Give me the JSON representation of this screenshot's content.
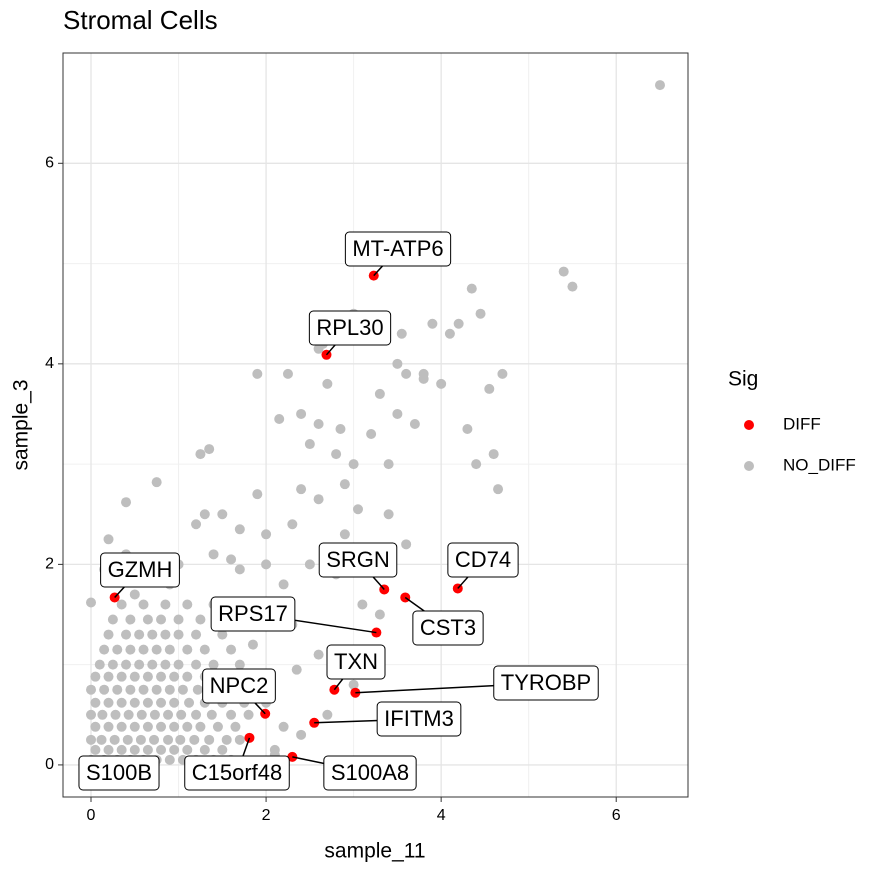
{
  "chart_data": {
    "type": "scatter",
    "title": "Stromal Cells",
    "x_label": "sample_11",
    "y_label": "sample_3",
    "xlim": [
      -0.32,
      6.82
    ],
    "ylim": [
      -0.32,
      7.1
    ],
    "xticks": [
      0,
      2,
      4,
      6
    ],
    "yticks": [
      0,
      2,
      4,
      6
    ],
    "x_minor_grid": [
      1,
      3,
      5
    ],
    "y_minor_grid": [
      1,
      3,
      5
    ],
    "grid": true,
    "legend_title": "Sig",
    "legend_position": "right",
    "series": [
      {
        "name": "DIFF",
        "color": "#ff0000",
        "labels": [
          "MT-ATP6",
          "RPL30",
          "GZMH",
          "SRGN",
          "CD74",
          "CST3",
          "RPS17",
          "TXN",
          "TYROBP",
          "IFITM3",
          "NPC2",
          "C15orf48",
          "S100B",
          "S100A8"
        ],
        "x": [
          3.23,
          2.69,
          0.27,
          3.35,
          4.19,
          3.59,
          3.26,
          2.78,
          3.02,
          2.55,
          1.99,
          1.81,
          0.3,
          2.3
        ],
        "y": [
          4.88,
          4.09,
          1.67,
          1.75,
          1.76,
          1.67,
          1.32,
          0.75,
          0.72,
          0.42,
          0.51,
          0.27,
          0.02,
          0.08
        ]
      },
      {
        "name": "NO_DIFF",
        "color": "#bebebe",
        "x": [
          0,
          0.15,
          0.3,
          0.45,
          0.6,
          0.75,
          0.9,
          1.05,
          1.2,
          1.4,
          1.6,
          0.05,
          0.2,
          0.35,
          0.5,
          0.65,
          0.8,
          0.95,
          1.1,
          1.3,
          1.5,
          2.1,
          0,
          0.12,
          0.27,
          0.42,
          0.57,
          0.72,
          0.88,
          1.02,
          1.18,
          1.35,
          1.55,
          1.7,
          0.05,
          0.2,
          0.35,
          0.5,
          0.65,
          0.8,
          0.95,
          1.1,
          1.25,
          1.45,
          1.65,
          2.2,
          0,
          0.13,
          0.28,
          0.43,
          0.58,
          0.73,
          0.88,
          1.03,
          1.2,
          1.38,
          1.6,
          1.8,
          0.05,
          0.2,
          0.35,
          0.5,
          0.65,
          0.8,
          0.95,
          1.12,
          1.3,
          1.5,
          1.75,
          2,
          0,
          0.15,
          0.3,
          0.45,
          0.6,
          0.75,
          0.9,
          1.05,
          1.22,
          1.4,
          1.62,
          1.9,
          0.05,
          0.2,
          0.35,
          0.5,
          0.65,
          0.8,
          0.95,
          1.1,
          1.3,
          1.55,
          1.85,
          0.1,
          0.25,
          0.4,
          0.55,
          0.7,
          0.85,
          1,
          1.2,
          1.4,
          1.7,
          0.15,
          0.3,
          0.45,
          0.6,
          0.75,
          0.9,
          1.1,
          1.3,
          1.6,
          0.2,
          0.4,
          0.55,
          0.7,
          0.85,
          1,
          1.2,
          1.5,
          0.25,
          0.45,
          0.65,
          0.8,
          1,
          1.25,
          0.35,
          0.6,
          0.85,
          1.1,
          1.4,
          0,
          0.15,
          0.2,
          0.4,
          0.4,
          0.75,
          1.25,
          1.35,
          1.3,
          1.7,
          1.9,
          2,
          2.3,
          2.4,
          2.6,
          2.8,
          2.9,
          2.5,
          2.6,
          2.7,
          2.85,
          3,
          3.05,
          3.2,
          3.3,
          3.4,
          3.5,
          3.6,
          3.7,
          3.8,
          3.9,
          4,
          4.1,
          4.2,
          4.3,
          4.4,
          4.45,
          4.35,
          4.55,
          4.6,
          4.7,
          4.65,
          5.4,
          5.5,
          6.5,
          1.9,
          2.25,
          2.15,
          2.4,
          2.65,
          2.6,
          3,
          3.1,
          3.5,
          3.55,
          3.8,
          3.4,
          3.3,
          3.1,
          3.3,
          2.8,
          2.5,
          2.2,
          2,
          2.3,
          2.6,
          3,
          3.2,
          2.7,
          2.4,
          2.1,
          2.35,
          1.85,
          1.6,
          1.5,
          1.7,
          2,
          2.9,
          3.6,
          1,
          0.9,
          0.6,
          0.5,
          1.2,
          1.4
        ],
        "y": [
          0.05,
          0.05,
          0.05,
          0.05,
          0.05,
          0.05,
          0.05,
          0.05,
          0.05,
          0.05,
          0.05,
          0.15,
          0.15,
          0.15,
          0.15,
          0.15,
          0.15,
          0.15,
          0.15,
          0.15,
          0.15,
          0.15,
          0.25,
          0.25,
          0.25,
          0.25,
          0.25,
          0.25,
          0.25,
          0.25,
          0.25,
          0.25,
          0.25,
          0.25,
          0.38,
          0.38,
          0.38,
          0.38,
          0.38,
          0.38,
          0.38,
          0.38,
          0.38,
          0.38,
          0.38,
          0.38,
          0.5,
          0.5,
          0.5,
          0.5,
          0.5,
          0.5,
          0.5,
          0.5,
          0.5,
          0.5,
          0.5,
          0.5,
          0.62,
          0.62,
          0.62,
          0.62,
          0.62,
          0.62,
          0.62,
          0.62,
          0.62,
          0.62,
          0.62,
          0.62,
          0.75,
          0.75,
          0.75,
          0.75,
          0.75,
          0.75,
          0.75,
          0.75,
          0.75,
          0.75,
          0.75,
          0.75,
          0.88,
          0.88,
          0.88,
          0.88,
          0.88,
          0.88,
          0.88,
          0.88,
          0.88,
          0.88,
          0.88,
          1,
          1,
          1,
          1,
          1,
          1,
          1,
          1,
          1,
          1,
          1.15,
          1.15,
          1.15,
          1.15,
          1.15,
          1.15,
          1.15,
          1.15,
          1.15,
          1.3,
          1.3,
          1.3,
          1.3,
          1.3,
          1.3,
          1.3,
          1.3,
          1.45,
          1.45,
          1.45,
          1.45,
          1.45,
          1.45,
          1.6,
          1.6,
          1.6,
          1.6,
          1.6,
          1.62,
          1.95,
          2.25,
          2.62,
          2.1,
          2.82,
          3.1,
          3.15,
          2.5,
          2.35,
          2.7,
          2.3,
          2.4,
          2.75,
          2.65,
          3.1,
          2.8,
          3.2,
          3.4,
          3.8,
          3.35,
          3,
          2.55,
          3.3,
          3.7,
          3,
          3.5,
          3.9,
          3.4,
          3.85,
          4.4,
          3.8,
          4.3,
          4.4,
          3.35,
          3,
          4.5,
          4.75,
          3.75,
          3.1,
          3.9,
          2.75,
          4.92,
          4.77,
          6.78,
          3.9,
          3.9,
          3.45,
          3.5,
          4.2,
          4.15,
          4.5,
          4.4,
          4,
          4.3,
          3.9,
          2.5,
          2,
          1.6,
          1.5,
          1.9,
          2,
          1.8,
          1.6,
          1.4,
          1.1,
          0.8,
          1.1,
          0.5,
          0.3,
          0.1,
          0.95,
          1.2,
          2.05,
          2.5,
          1.95,
          2,
          2.3,
          2.2,
          2,
          1.8,
          1.9,
          1.7,
          2.4,
          2.1
        ]
      }
    ]
  }
}
